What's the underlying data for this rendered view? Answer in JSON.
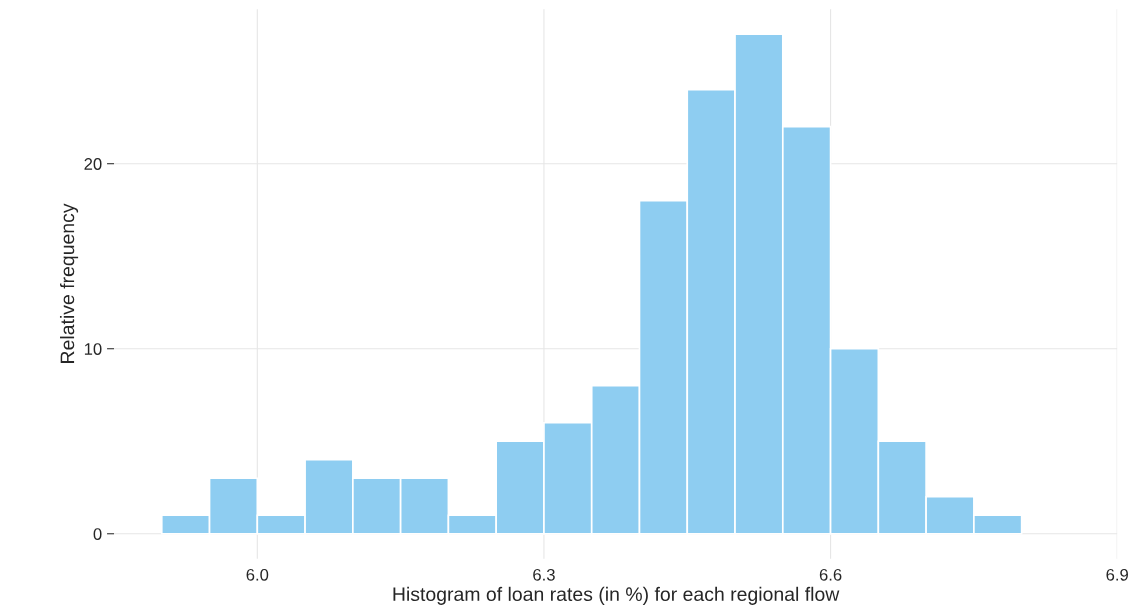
{
  "chart_data": {
    "type": "histogram",
    "xlabel": "Histogram of loan rates (in %) for each regional flow",
    "ylabel": "Relative frequency",
    "bins": [
      5.9,
      5.95,
      6.0,
      6.05,
      6.1,
      6.15,
      6.2,
      6.25,
      6.3,
      6.35,
      6.4,
      6.45,
      6.5,
      6.55,
      6.6,
      6.65,
      6.7,
      6.75,
      6.8
    ],
    "values": [
      1,
      3,
      1,
      4,
      3,
      3,
      1,
      5,
      6,
      8,
      18,
      24,
      27,
      22,
      10,
      5,
      2,
      1
    ],
    "color": "#8ecdf1",
    "xlim": [
      5.85,
      6.9
    ],
    "xticks": [
      {
        "value": 6.0,
        "label": "6.0"
      },
      {
        "value": 6.3,
        "label": "6.3"
      },
      {
        "value": 6.6,
        "label": "6.6"
      },
      {
        "value": 6.9,
        "label": "6.9"
      }
    ],
    "ylim": [
      -1.35,
      28.35
    ],
    "yticks": [
      0,
      10,
      20
    ],
    "grid": true
  }
}
